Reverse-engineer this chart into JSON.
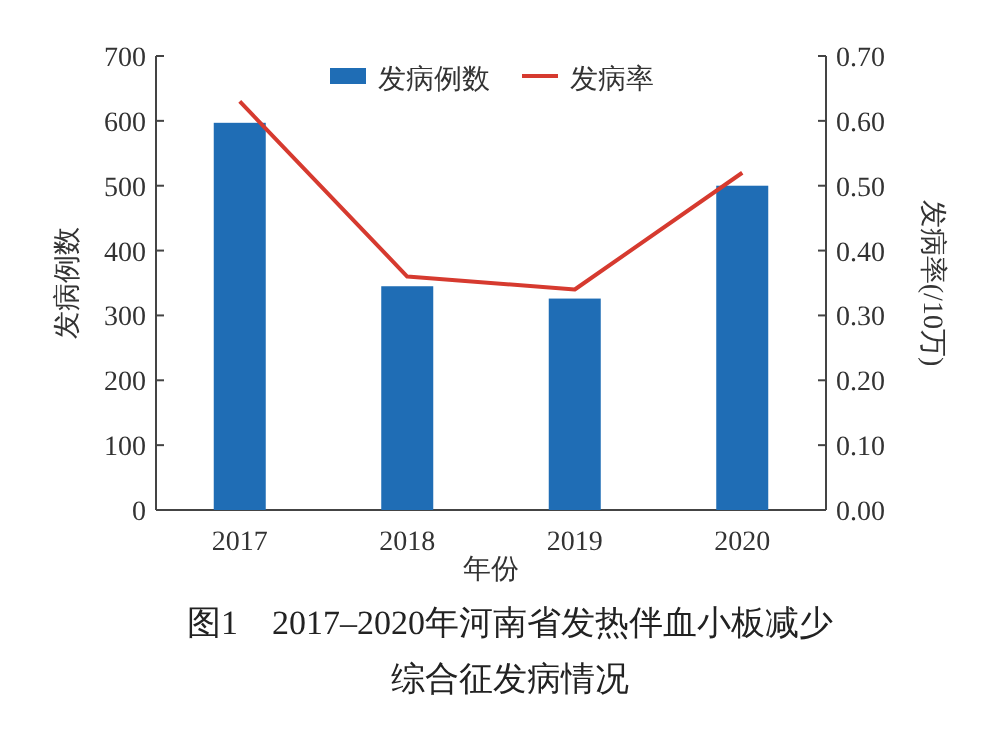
{
  "chart_data": {
    "type": "bar",
    "title": "图1　2017–2020年河南省发热伴血小板减少综合征发病情况",
    "xlabel": "年份",
    "ylabel": "发病例数",
    "y2label": "发病率(/10万)",
    "categories": [
      "2017",
      "2018",
      "2019",
      "2020"
    ],
    "series": [
      {
        "name": "发病例数",
        "color": "#1f6db5",
        "values": [
          597,
          345,
          326,
          500
        ]
      },
      {
        "name": "发病率",
        "type": "line",
        "axis": "y2",
        "color": "#d63a2f",
        "values": [
          0.63,
          0.36,
          0.34,
          0.52
        ]
      }
    ],
    "ylim": [
      0,
      700
    ],
    "yticks": [
      0,
      100,
      200,
      300,
      400,
      500,
      600,
      700
    ],
    "y2lim": [
      0,
      0.7
    ],
    "y2ticks": [
      {
        "value": 0,
        "label": "0.00"
      },
      {
        "value": 0.1,
        "label": "0.10"
      },
      {
        "value": 0.2,
        "label": "0.20"
      },
      {
        "value": 0.3,
        "label": "0.30"
      },
      {
        "value": 0.4,
        "label": "0.40"
      },
      {
        "value": 0.5,
        "label": "0.50"
      },
      {
        "value": 0.6,
        "label": "0.60"
      },
      {
        "value": 0.7,
        "label": "0.70"
      }
    ],
    "legend": "top",
    "grid": false
  }
}
